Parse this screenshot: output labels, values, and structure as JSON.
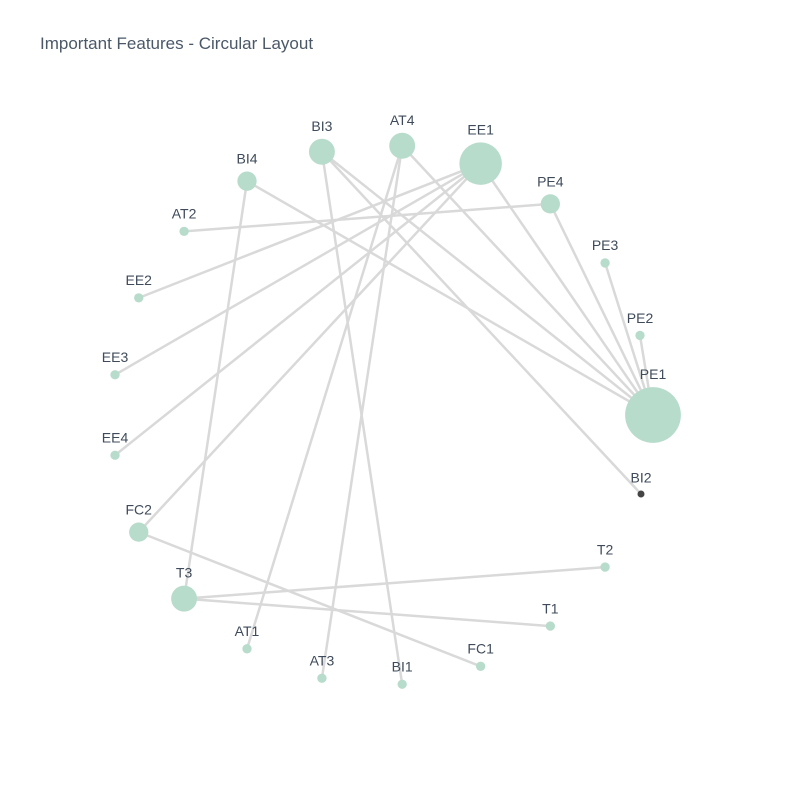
{
  "title": "Important Features - Circular Layout",
  "colors": {
    "node": "#b8dccb",
    "edge": "#d9d9d9",
    "highlight": "#444444",
    "label": "#3f4b5a"
  },
  "nodes": [
    {
      "id": "PE1",
      "weight": 3.0
    },
    {
      "id": "PE2",
      "weight": 0.2
    },
    {
      "id": "PE3",
      "weight": 0.2
    },
    {
      "id": "PE4",
      "weight": 0.8
    },
    {
      "id": "EE1",
      "weight": 2.2
    },
    {
      "id": "AT4",
      "weight": 1.2
    },
    {
      "id": "BI3",
      "weight": 1.2
    },
    {
      "id": "BI4",
      "weight": 0.8
    },
    {
      "id": "AT2",
      "weight": 0.2
    },
    {
      "id": "EE2",
      "weight": 0.2
    },
    {
      "id": "EE3",
      "weight": 0.2
    },
    {
      "id": "EE4",
      "weight": 0.2
    },
    {
      "id": "FC2",
      "weight": 0.8
    },
    {
      "id": "T3",
      "weight": 1.2
    },
    {
      "id": "AT1",
      "weight": 0.2
    },
    {
      "id": "AT3",
      "weight": 0.2
    },
    {
      "id": "BI1",
      "weight": 0.2
    },
    {
      "id": "FC1",
      "weight": 0.2
    },
    {
      "id": "T1",
      "weight": 0.2
    },
    {
      "id": "T2",
      "weight": 0.2
    },
    {
      "id": "BI2",
      "weight": 0.2,
      "highlight": true
    }
  ],
  "edges": [
    [
      "PE1",
      "PE2"
    ],
    [
      "PE1",
      "PE3"
    ],
    [
      "PE1",
      "PE4"
    ],
    [
      "PE1",
      "EE1"
    ],
    [
      "PE1",
      "AT4"
    ],
    [
      "PE1",
      "BI3"
    ],
    [
      "PE1",
      "BI4"
    ],
    [
      "EE1",
      "EE2"
    ],
    [
      "EE1",
      "EE3"
    ],
    [
      "EE1",
      "EE4"
    ],
    [
      "EE1",
      "FC2"
    ],
    [
      "AT4",
      "AT1"
    ],
    [
      "AT4",
      "AT3"
    ],
    [
      "BI3",
      "BI1"
    ],
    [
      "BI3",
      "BI2"
    ],
    [
      "BI4",
      "T3"
    ],
    [
      "PE4",
      "AT2"
    ],
    [
      "T3",
      "T1"
    ],
    [
      "T3",
      "T2"
    ],
    [
      "FC2",
      "FC1"
    ]
  ]
}
